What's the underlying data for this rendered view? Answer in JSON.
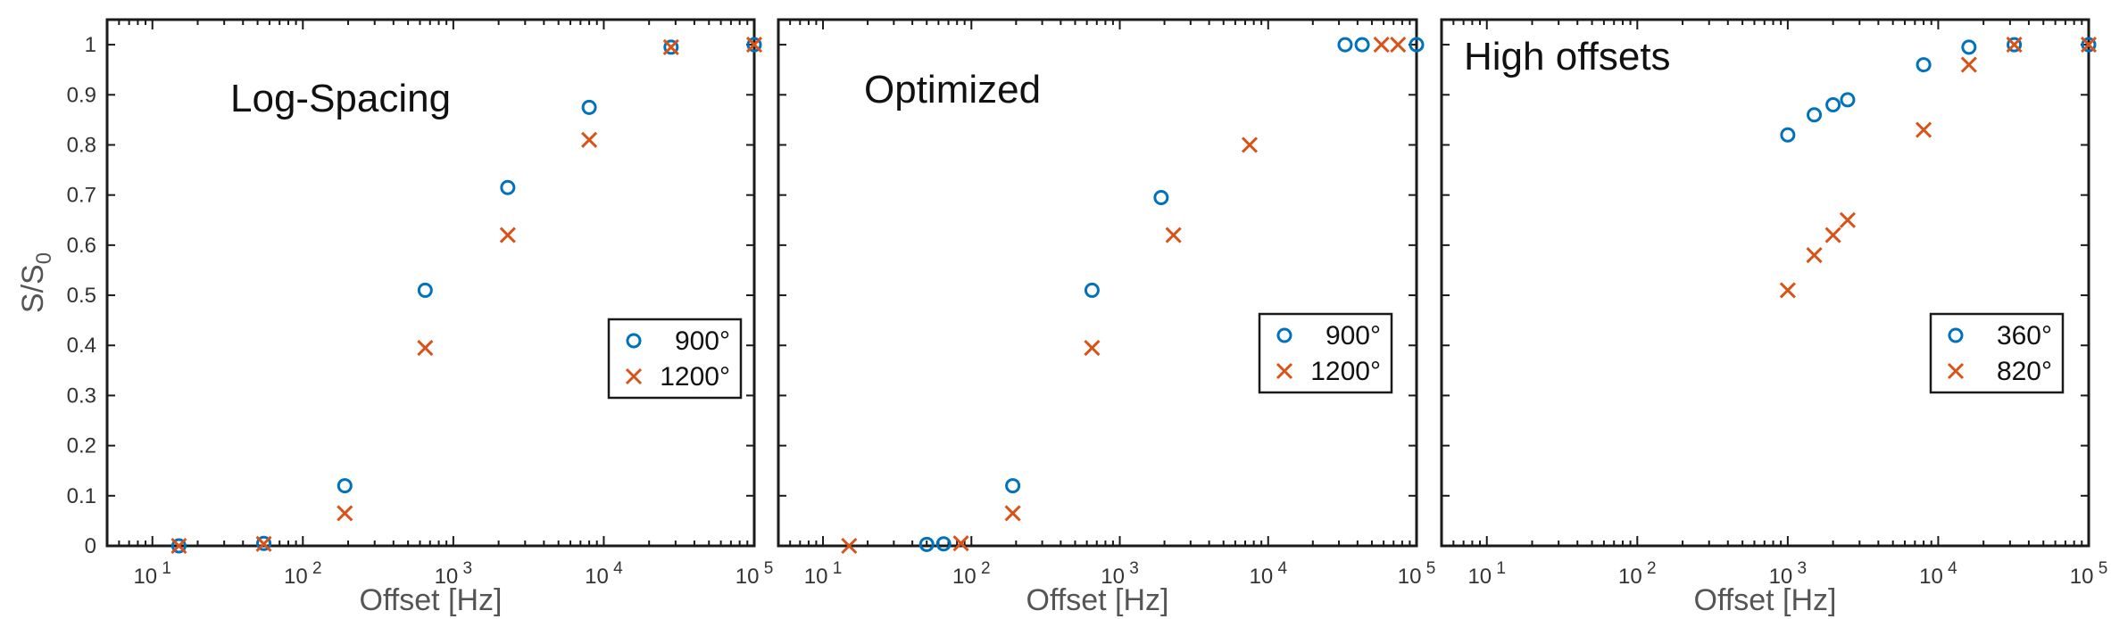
{
  "chart_data": [
    {
      "type": "scatter",
      "annotation": "Log-Spacing",
      "xlabel": "Offset [Hz]",
      "ylabel": "S/S0",
      "xscale": "log",
      "xlim": [
        5,
        100000
      ],
      "ylim": [
        0,
        1.05
      ],
      "xticks": [
        10,
        100,
        1000,
        10000,
        100000
      ],
      "yticks": [
        0,
        0.1,
        0.2,
        0.3,
        0.4,
        0.5,
        0.6,
        0.7,
        0.8,
        0.9,
        1
      ],
      "legend_position": "center-right",
      "series": [
        {
          "name": "900°",
          "marker": "circle",
          "color": "#0072BD",
          "x": [
            15,
            55,
            190,
            650,
            2300,
            8000,
            28000,
            100000
          ],
          "y": [
            0.0,
            0.005,
            0.12,
            0.51,
            0.715,
            0.875,
            0.995,
            1.0
          ]
        },
        {
          "name": "1200°",
          "marker": "x",
          "color": "#D95319",
          "x": [
            15,
            55,
            190,
            650,
            2300,
            8000,
            28000,
            100000
          ],
          "y": [
            0.0,
            0.004,
            0.065,
            0.395,
            0.62,
            0.81,
            0.995,
            1.0
          ]
        }
      ]
    },
    {
      "type": "scatter",
      "annotation": "Optimized",
      "xlabel": "Offset [Hz]",
      "ylabel": "",
      "xscale": "log",
      "xlim": [
        5,
        100000
      ],
      "ylim": [
        0,
        1.05
      ],
      "xticks": [
        10,
        100,
        1000,
        10000,
        100000
      ],
      "yticks": [
        0,
        0.1,
        0.2,
        0.3,
        0.4,
        0.5,
        0.6,
        0.7,
        0.8,
        0.9,
        1
      ],
      "legend_position": "center-right",
      "series": [
        {
          "name": "900°",
          "marker": "circle",
          "color": "#0072BD",
          "x": [
            50,
            65,
            190,
            650,
            1900,
            33000,
            43000,
            100000
          ],
          "y": [
            0.003,
            0.004,
            0.12,
            0.51,
            0.695,
            1.0,
            1.0,
            1.0
          ]
        },
        {
          "name": "1200°",
          "marker": "x",
          "color": "#D95319",
          "x": [
            15,
            85,
            190,
            650,
            2300,
            7500,
            58000,
            75000
          ],
          "y": [
            0.0,
            0.005,
            0.065,
            0.395,
            0.62,
            0.8,
            1.0,
            1.0
          ]
        }
      ]
    },
    {
      "type": "scatter",
      "annotation": "High offsets",
      "xlabel": "Offset [Hz]",
      "ylabel": "",
      "xscale": "log",
      "xlim": [
        5,
        100000
      ],
      "ylim": [
        0,
        1.05
      ],
      "xticks": [
        10,
        100,
        1000,
        10000,
        100000
      ],
      "yticks": [
        0,
        0.1,
        0.2,
        0.3,
        0.4,
        0.5,
        0.6,
        0.7,
        0.8,
        0.9,
        1
      ],
      "legend_position": "center-right",
      "series": [
        {
          "name": "360°",
          "marker": "circle",
          "color": "#0072BD",
          "x": [
            1000,
            1500,
            2000,
            2500,
            8000,
            16000,
            32000,
            100000
          ],
          "y": [
            0.82,
            0.86,
            0.88,
            0.89,
            0.96,
            0.995,
            1.0,
            1.0
          ]
        },
        {
          "name": "820°",
          "marker": "x",
          "color": "#D95319",
          "x": [
            1000,
            1500,
            2000,
            2500,
            8000,
            16000,
            32000,
            100000
          ],
          "y": [
            0.51,
            0.58,
            0.62,
            0.65,
            0.83,
            0.96,
            1.0,
            1.0
          ]
        }
      ]
    }
  ]
}
